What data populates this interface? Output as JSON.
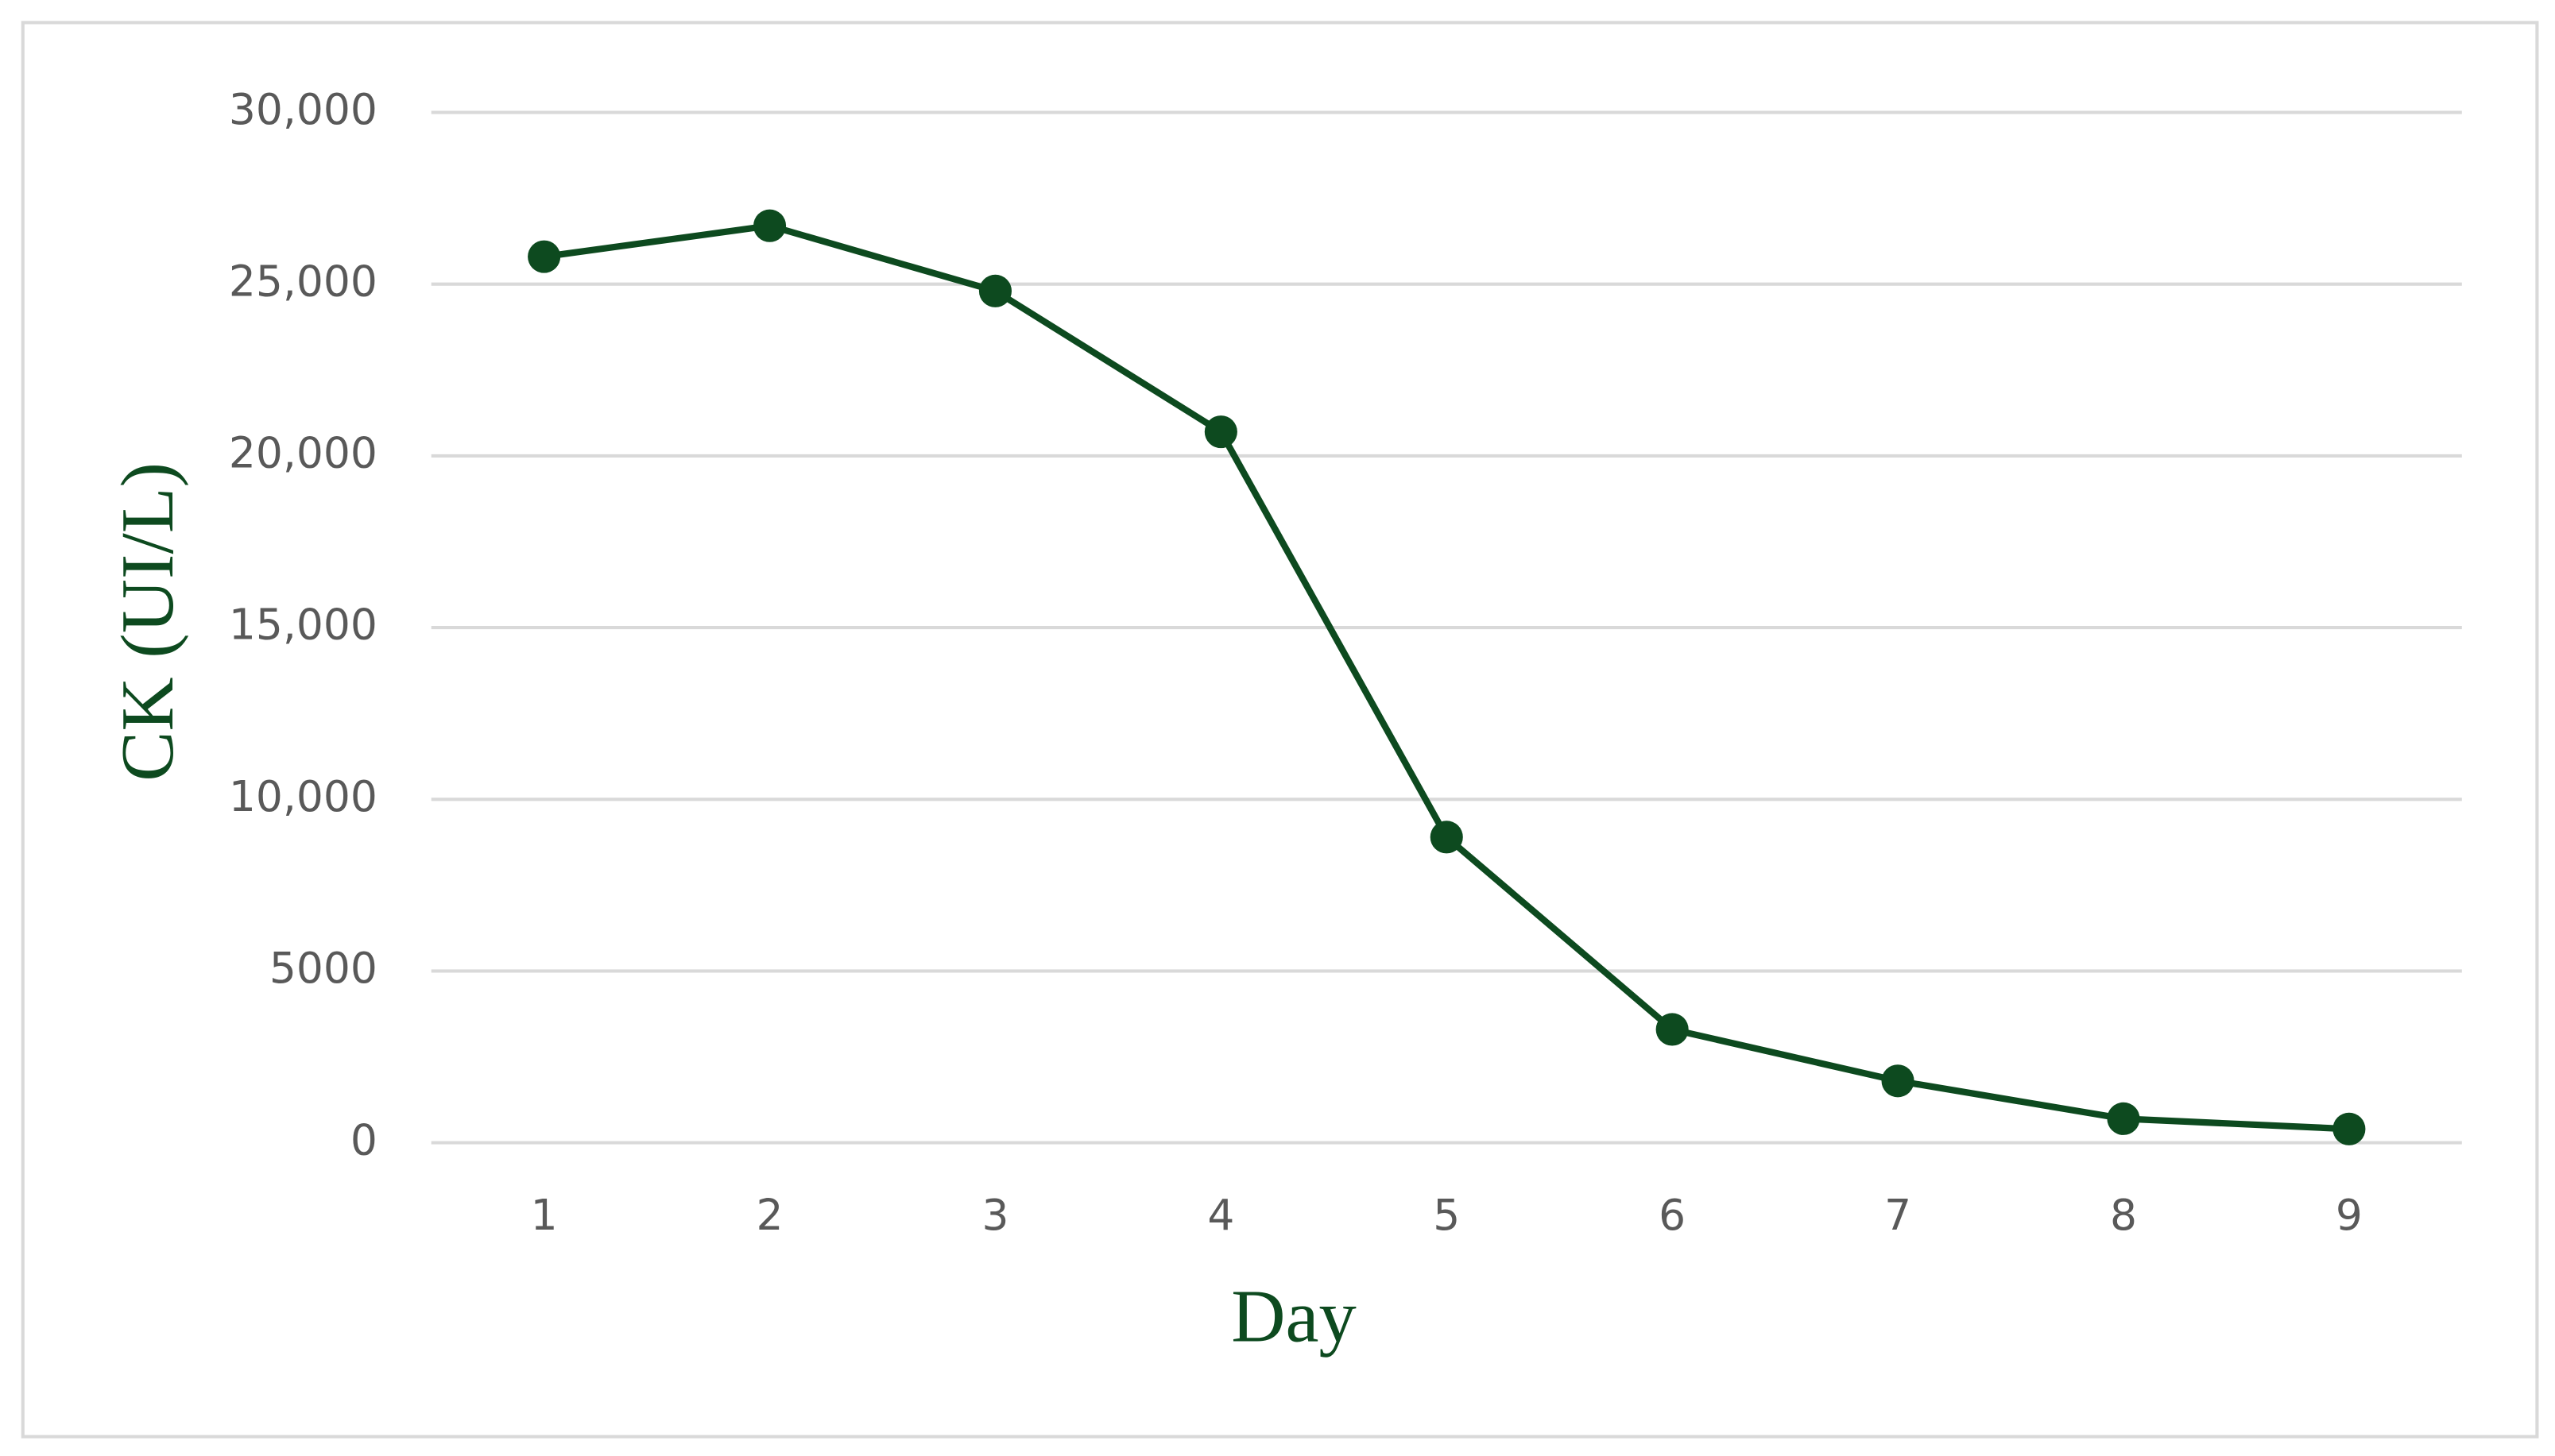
{
  "chart_data": {
    "type": "line",
    "x_label": "Day",
    "y_label": "CK (UI/L)",
    "x": [
      1,
      2,
      3,
      4,
      5,
      6,
      7,
      8,
      9
    ],
    "series": [
      {
        "color": "#0d4a1f",
        "values": [
          25800,
          26700,
          24800,
          20700,
          8900,
          3300,
          1800,
          700,
          400
        ]
      }
    ],
    "xlim": [
      0.5,
      9.5
    ],
    "xticks": [
      1,
      2,
      3,
      4,
      5,
      6,
      7,
      8,
      9
    ],
    "ylim": [
      0,
      30000
    ],
    "yticks": [
      0,
      5000,
      {
        "value": 10000,
        "label": "10,000"
      },
      {
        "value": 15000,
        "label": "15,000"
      },
      {
        "value": 20000,
        "label": "20,000"
      },
      {
        "value": 25000,
        "label": "25,000"
      },
      {
        "value": 30000,
        "label": "30,000"
      }
    ],
    "grid": true,
    "markers": true
  }
}
